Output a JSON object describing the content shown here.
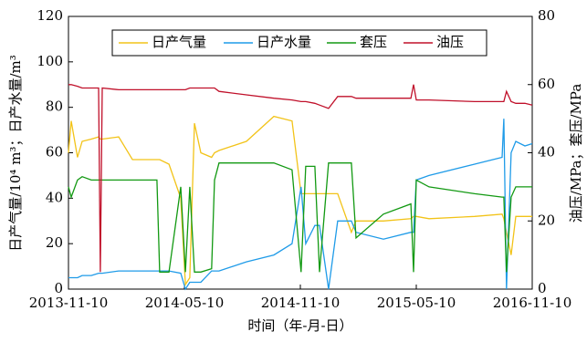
{
  "chart_data": {
    "type": "line",
    "xlabel": "时间（年-月-日）",
    "ylabel": "日产气量/10⁴ m³；日产水量/m³",
    "y2label": "油压/MPa；套压/MPa",
    "x": [
      0,
      0.14,
      0.47,
      0.71,
      1.18,
      1.56,
      1.65,
      1.75,
      2.6,
      3.31,
      4.01,
      4.58,
      4.72,
      5.2,
      5.81,
      6.05,
      6.28,
      6.52,
      6.85,
      7.41,
      7.56,
      7.79,
      9.21,
      10.63,
      11.57,
      12.04,
      12.28,
      12.75,
      12.99,
      13.46,
      13.93,
      14.64,
      14.88,
      16.3,
      17.72,
      17.86,
      18.0,
      18.66,
      21.02,
      22.44,
      22.53,
      22.67,
      22.91,
      23.15,
      23.62,
      24.0
    ],
    "xlim": [
      0,
      24
    ],
    "xticks": [
      {
        "value": 0,
        "label": "2013-11-10"
      },
      {
        "value": 6,
        "label": "2014-05-10"
      },
      {
        "value": 12,
        "label": "2014-11-10"
      },
      {
        "value": 18,
        "label": "2015-05-10"
      },
      {
        "value": 24,
        "label": "2016-11-10"
      }
    ],
    "ylim": [
      0,
      120
    ],
    "yticks": [
      0,
      20,
      40,
      60,
      80,
      100,
      120
    ],
    "y2lim": [
      0,
      80
    ],
    "y2ticks": [
      0,
      20,
      40,
      60,
      80
    ],
    "legend": "top",
    "series": [
      {
        "name": "日产气量",
        "color": "#f2c318",
        "values": [
          60,
          74,
          58,
          65,
          66,
          67,
          66,
          66,
          67,
          57,
          57,
          57,
          57,
          55,
          40,
          2,
          5,
          73,
          60,
          58,
          60,
          61,
          65,
          76,
          74,
          42,
          42,
          42,
          42,
          42,
          42,
          25,
          30,
          30,
          31,
          32,
          32,
          31,
          32,
          33,
          31,
          25,
          15,
          32,
          32,
          32
        ]
      },
      {
        "name": "日产水量",
        "color": "#1f9be8",
        "values": [
          5,
          5,
          5,
          6,
          6,
          7,
          7,
          7,
          8,
          8,
          8,
          8,
          8,
          8,
          7,
          0,
          3,
          3,
          3,
          8,
          8,
          8,
          12,
          15,
          20,
          45,
          20,
          28,
          28,
          0,
          30,
          30,
          25,
          22,
          25,
          25,
          48,
          50,
          55,
          58,
          75,
          0,
          60,
          65,
          63,
          64
        ]
      },
      {
        "name": "套压",
        "color": "#129912",
        "axis": "y2",
        "values": [
          30,
          27,
          32,
          33,
          32,
          32,
          32,
          32,
          32,
          32,
          32,
          32,
          5,
          5,
          30,
          5,
          30,
          5,
          5,
          6,
          32,
          37,
          37,
          37,
          35,
          5,
          36,
          36,
          5,
          37,
          37,
          37,
          15,
          22,
          25,
          5,
          32,
          30,
          28,
          27,
          27,
          5,
          27,
          30,
          30,
          30
        ]
      },
      {
        "name": "油压",
        "color": "#c0102a",
        "axis": "y2",
        "values": [
          60,
          60,
          59.5,
          59,
          59,
          59,
          5,
          59,
          58.5,
          58.5,
          58.5,
          58.5,
          58.5,
          58.5,
          58.5,
          58.5,
          59,
          59,
          59,
          59,
          59,
          58,
          57,
          56,
          55.5,
          55,
          55,
          54.5,
          54,
          53,
          56.5,
          56.5,
          56,
          56,
          56,
          60,
          55.5,
          55.5,
          55,
          55,
          55,
          58,
          55,
          54.5,
          54.5,
          54
        ]
      }
    ]
  }
}
